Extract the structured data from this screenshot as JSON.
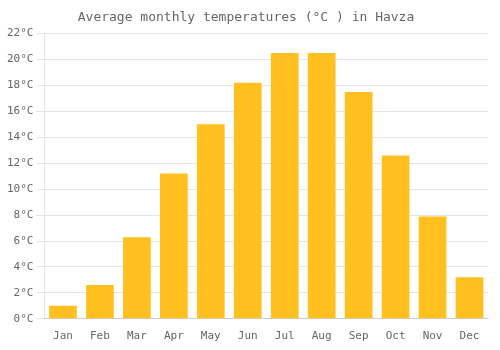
{
  "chart_data": {
    "type": "bar",
    "title": "Average monthly temperatures (°C ) in Havza",
    "categories": [
      "Jan",
      "Feb",
      "Mar",
      "Apr",
      "May",
      "Jun",
      "Jul",
      "Aug",
      "Sep",
      "Oct",
      "Nov",
      "Dec"
    ],
    "values": [
      1.0,
      2.6,
      6.3,
      11.2,
      15.0,
      18.2,
      20.5,
      20.5,
      17.5,
      12.6,
      7.9,
      3.2
    ],
    "color": "#FFC020",
    "ylim": [
      0,
      22
    ],
    "yticks": [
      {
        "value": 0,
        "label": "0°C"
      },
      {
        "value": 2,
        "label": "2°C"
      },
      {
        "value": 4,
        "label": "4°C"
      },
      {
        "value": 6,
        "label": "6°C"
      },
      {
        "value": 8,
        "label": "8°C"
      },
      {
        "value": 10,
        "label": "10°C"
      },
      {
        "value": 12,
        "label": "12°C"
      },
      {
        "value": 14,
        "label": "14°C"
      },
      {
        "value": 16,
        "label": "16°C"
      },
      {
        "value": 18,
        "label": "18°C"
      },
      {
        "value": 20,
        "label": "20°C"
      },
      {
        "value": 22,
        "label": "22°C"
      }
    ],
    "grid": true
  }
}
